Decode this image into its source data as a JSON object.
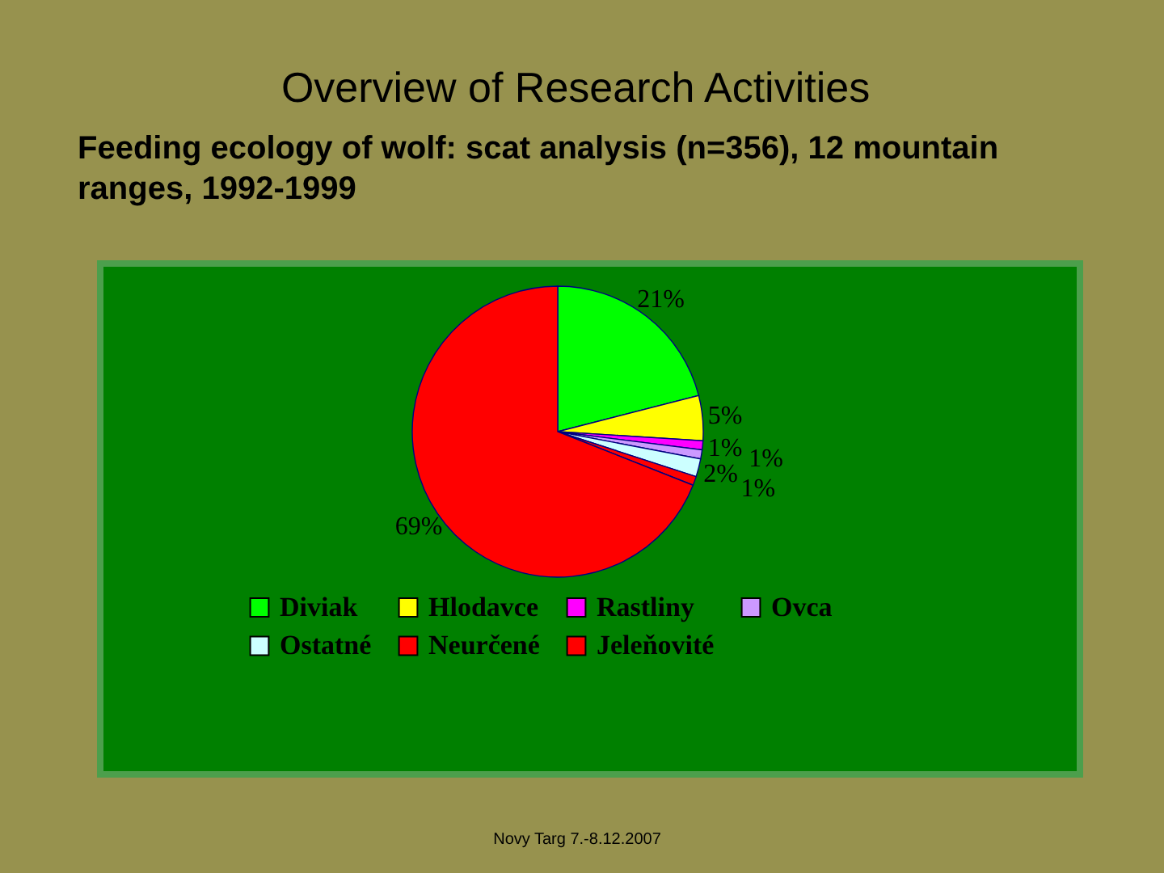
{
  "chart_data": {
    "type": "pie",
    "title": "Overview of Research Activities",
    "subtitle": "Feeding ecology of  wolf: scat analysis (n=356), 12 mountain ranges, 1992-1999",
    "categories": [
      "Diviak",
      "Hlodavce",
      "Rastliny",
      "Ovca",
      "Ostatné",
      "Neurčené",
      "Jeleňovité"
    ],
    "values": [
      21,
      5,
      1,
      1,
      2,
      1,
      69
    ],
    "colors": [
      "#00ff00",
      "#ffff00",
      "#ff00ff",
      "#cc99ff",
      "#ccffff",
      "#ff0000",
      "#ff0000"
    ],
    "value_labels": [
      "21%",
      "5%",
      "1%",
      "1%",
      "2%",
      "1%",
      "69%"
    ],
    "legend": "bottom",
    "annotations": [
      "Novy Targ 7.-8.12.2007"
    ]
  }
}
